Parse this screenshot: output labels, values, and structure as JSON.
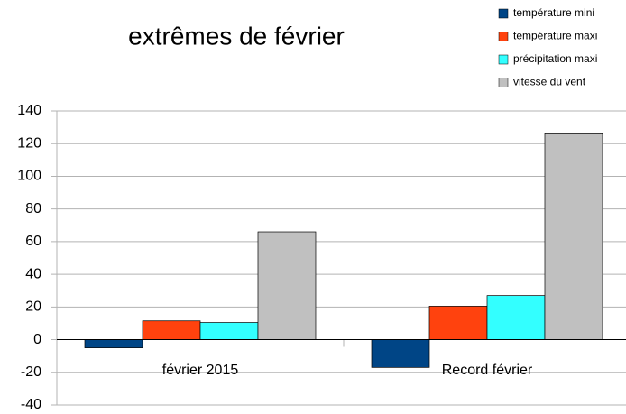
{
  "chart_data": {
    "type": "bar",
    "title": "extrêmes de février",
    "categories": [
      "février 2015",
      "Record février"
    ],
    "series": [
      {
        "name": "température mini",
        "color": "#004586",
        "values": [
          -5,
          -17
        ]
      },
      {
        "name": "température maxi",
        "color": "#ff420e",
        "values": [
          11.5,
          20.5
        ]
      },
      {
        "name": "précipitation maxi",
        "color": "#33ffff",
        "values": [
          10.5,
          27
        ]
      },
      {
        "name": "vitesse du vent",
        "color": "#c0c0c0",
        "values": [
          66,
          126
        ]
      }
    ],
    "ylim": [
      -40,
      140
    ],
    "yticks": [
      -40,
      -20,
      0,
      20,
      40,
      60,
      80,
      100,
      120,
      140
    ],
    "grid": true,
    "legend": "top-right"
  }
}
